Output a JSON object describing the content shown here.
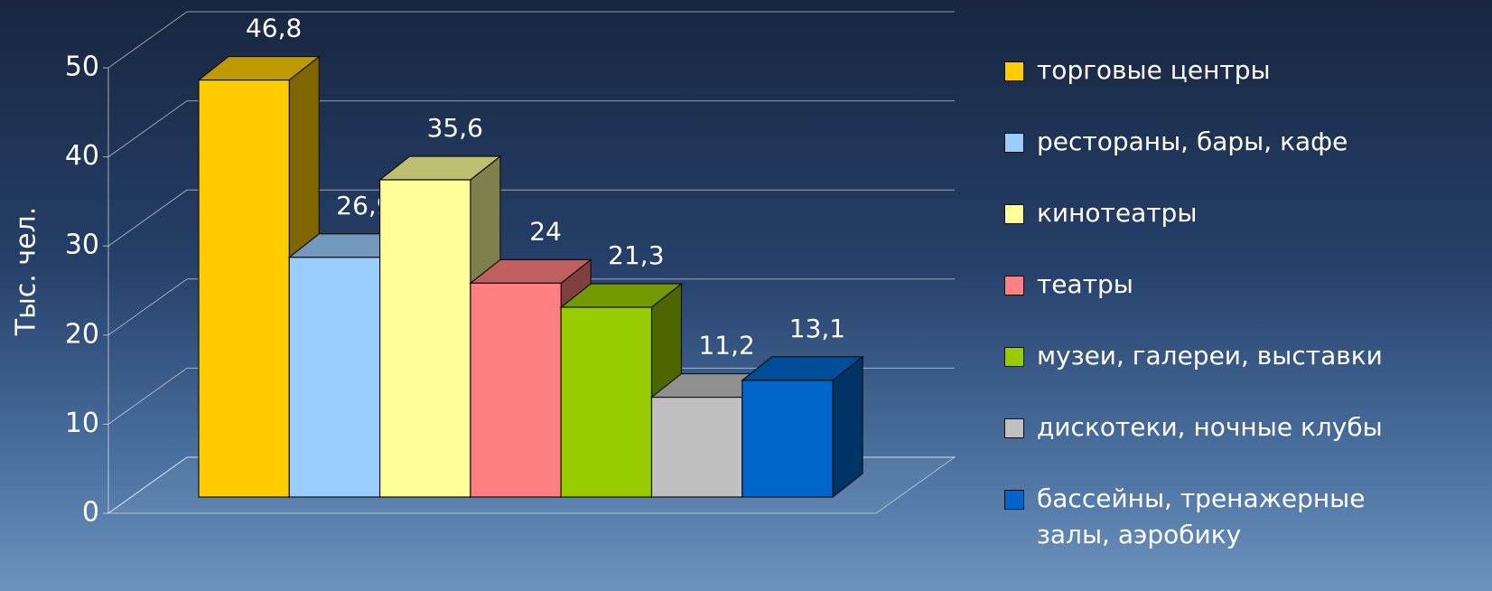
{
  "chart_data": {
    "type": "bar3d",
    "y_label": "Тыс. чел.",
    "categories": [
      null
    ],
    "series": [
      {
        "name": "торговые центры",
        "color": "#ffcc00",
        "values": [
          46.8
        ],
        "value_labels": [
          "46,8"
        ]
      },
      {
        "name": "рестораны, бары, кафе",
        "color": "#99ccff",
        "values": [
          26.9
        ],
        "value_labels": [
          "26,9"
        ]
      },
      {
        "name": "кинотеатры",
        "color": "#ffff99",
        "values": [
          35.6
        ],
        "value_labels": [
          "35,6"
        ]
      },
      {
        "name": "театры",
        "color": "#ff8080",
        "values": [
          24
        ],
        "value_labels": [
          "24"
        ]
      },
      {
        "name": "музеи, галереи, выставки",
        "color": "#99cc00",
        "values": [
          21.3
        ],
        "value_labels": [
          "21,3"
        ]
      },
      {
        "name": "дискотеки, ночные клубы",
        "color": "#c0c0c0",
        "values": [
          11.2
        ],
        "value_labels": [
          "11,2"
        ]
      },
      {
        "name": "бассейны, тренажерные залы, аэробику",
        "color": "#0066cc",
        "values": [
          13.1
        ],
        "value_labels": [
          "13,1"
        ]
      }
    ],
    "ylim": [
      0,
      50
    ],
    "yticks": [
      0,
      10,
      20,
      30,
      40,
      50
    ],
    "grid": true,
    "legend": "right"
  }
}
